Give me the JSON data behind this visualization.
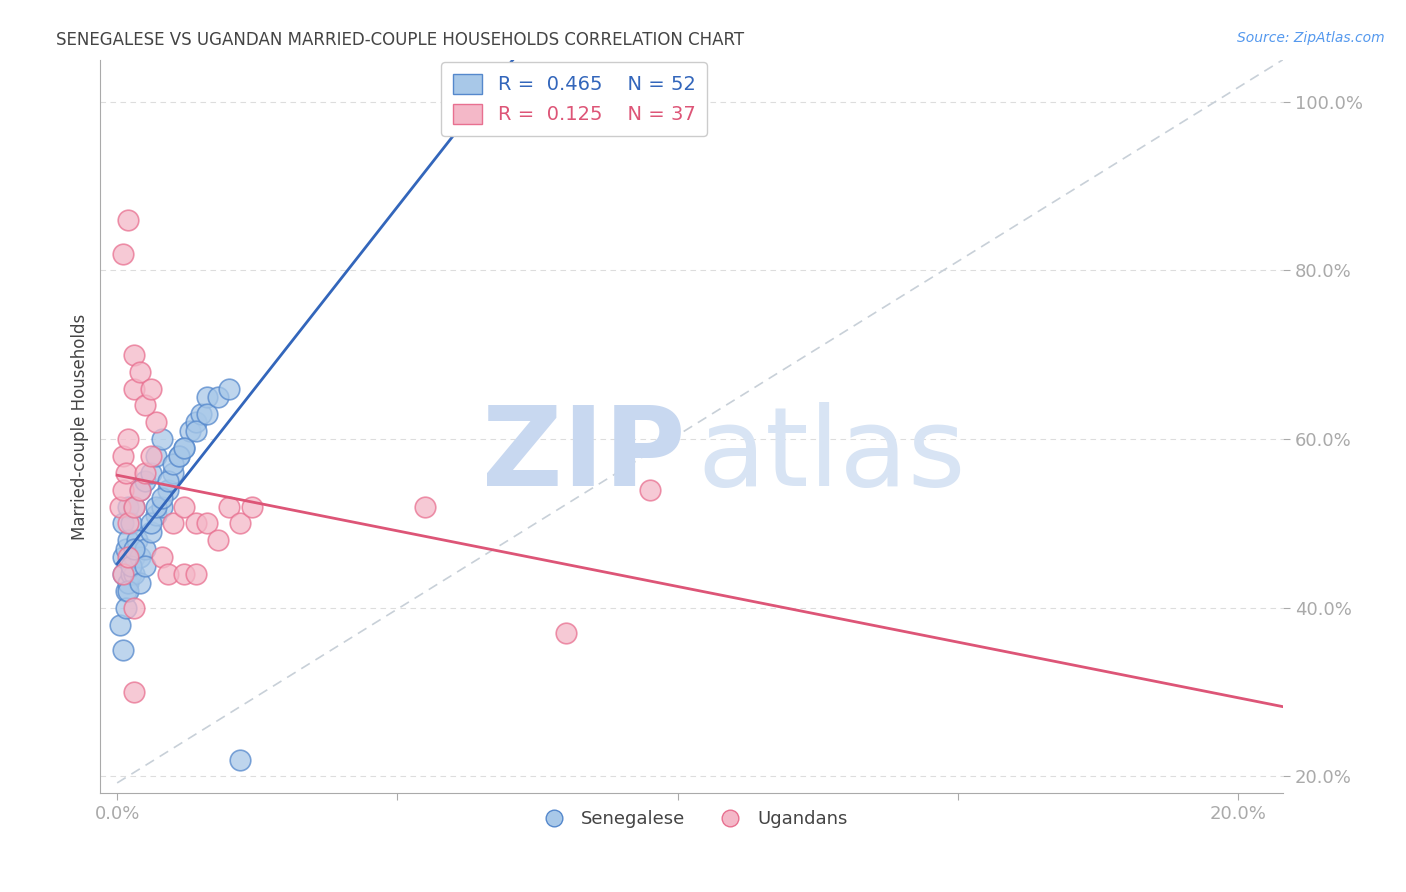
{
  "title": "SENEGALESE VS UGANDAN MARRIED-COUPLE HOUSEHOLDS CORRELATION CHART",
  "source": "Source: ZipAtlas.com",
  "ylabel": "Married-couple Households",
  "x_ticks": [
    0.0,
    0.05,
    0.1,
    0.15,
    0.2
  ],
  "x_tick_labels": [
    "0.0%",
    "",
    "",
    "",
    "20.0%"
  ],
  "y_ticks": [
    0.2,
    0.4,
    0.6,
    0.8,
    1.0
  ],
  "y_tick_labels": [
    "20.0%",
    "40.0%",
    "60.0%",
    "80.0%",
    "100.0%"
  ],
  "xlim": [
    -0.003,
    0.208
  ],
  "ylim": [
    0.18,
    1.05
  ],
  "blue_fill": "#A8C8E8",
  "pink_fill": "#F4B8C8",
  "blue_edge": "#5588CC",
  "pink_edge": "#E87090",
  "blue_line": "#3366BB",
  "pink_line": "#DD5577",
  "diag_color": "#C8D0D8",
  "grid_color": "#DDDDDD",
  "axis_color": "#AAAAAA",
  "title_color": "#444444",
  "tick_label_color": "#5599EE",
  "watermark_zip_color": "#C8D8F0",
  "watermark_atlas_color": "#D8E4F4",
  "legend_blue_label": "R =  0.465    N = 52",
  "legend_pink_label": "R =  0.125    N = 37",
  "senegalese_x": [
    0.0005,
    0.001,
    0.001,
    0.001,
    0.0015,
    0.0015,
    0.002,
    0.002,
    0.002,
    0.0025,
    0.0025,
    0.003,
    0.003,
    0.003,
    0.0035,
    0.004,
    0.004,
    0.005,
    0.005,
    0.006,
    0.006,
    0.007,
    0.007,
    0.008,
    0.008,
    0.009,
    0.01,
    0.011,
    0.012,
    0.013,
    0.014,
    0.015,
    0.016,
    0.001,
    0.0015,
    0.002,
    0.0025,
    0.003,
    0.004,
    0.005,
    0.006,
    0.007,
    0.008,
    0.009,
    0.01,
    0.011,
    0.012,
    0.014,
    0.016,
    0.018,
    0.02,
    0.022
  ],
  "senegalese_y": [
    0.38,
    0.44,
    0.46,
    0.5,
    0.42,
    0.47,
    0.43,
    0.48,
    0.52,
    0.44,
    0.5,
    0.44,
    0.46,
    0.52,
    0.48,
    0.46,
    0.54,
    0.47,
    0.55,
    0.49,
    0.56,
    0.51,
    0.58,
    0.52,
    0.6,
    0.54,
    0.56,
    0.58,
    0.59,
    0.61,
    0.62,
    0.63,
    0.65,
    0.35,
    0.4,
    0.42,
    0.45,
    0.47,
    0.43,
    0.45,
    0.5,
    0.52,
    0.53,
    0.55,
    0.57,
    0.58,
    0.59,
    0.61,
    0.63,
    0.65,
    0.66,
    0.22
  ],
  "ugandan_x": [
    0.0005,
    0.001,
    0.001,
    0.0015,
    0.002,
    0.002,
    0.003,
    0.003,
    0.004,
    0.005,
    0.006,
    0.007,
    0.008,
    0.01,
    0.012,
    0.014,
    0.016,
    0.018,
    0.02,
    0.022,
    0.024,
    0.001,
    0.002,
    0.003,
    0.004,
    0.005,
    0.006,
    0.009,
    0.012,
    0.055,
    0.08,
    0.095,
    0.001,
    0.002,
    0.003,
    0.003,
    0.014
  ],
  "ugandan_y": [
    0.52,
    0.54,
    0.58,
    0.56,
    0.5,
    0.6,
    0.52,
    0.66,
    0.54,
    0.56,
    0.58,
    0.62,
    0.46,
    0.5,
    0.52,
    0.5,
    0.5,
    0.48,
    0.52,
    0.5,
    0.52,
    0.82,
    0.86,
    0.7,
    0.68,
    0.64,
    0.66,
    0.44,
    0.44,
    0.52,
    0.37,
    0.54,
    0.44,
    0.46,
    0.4,
    0.3,
    0.44
  ]
}
